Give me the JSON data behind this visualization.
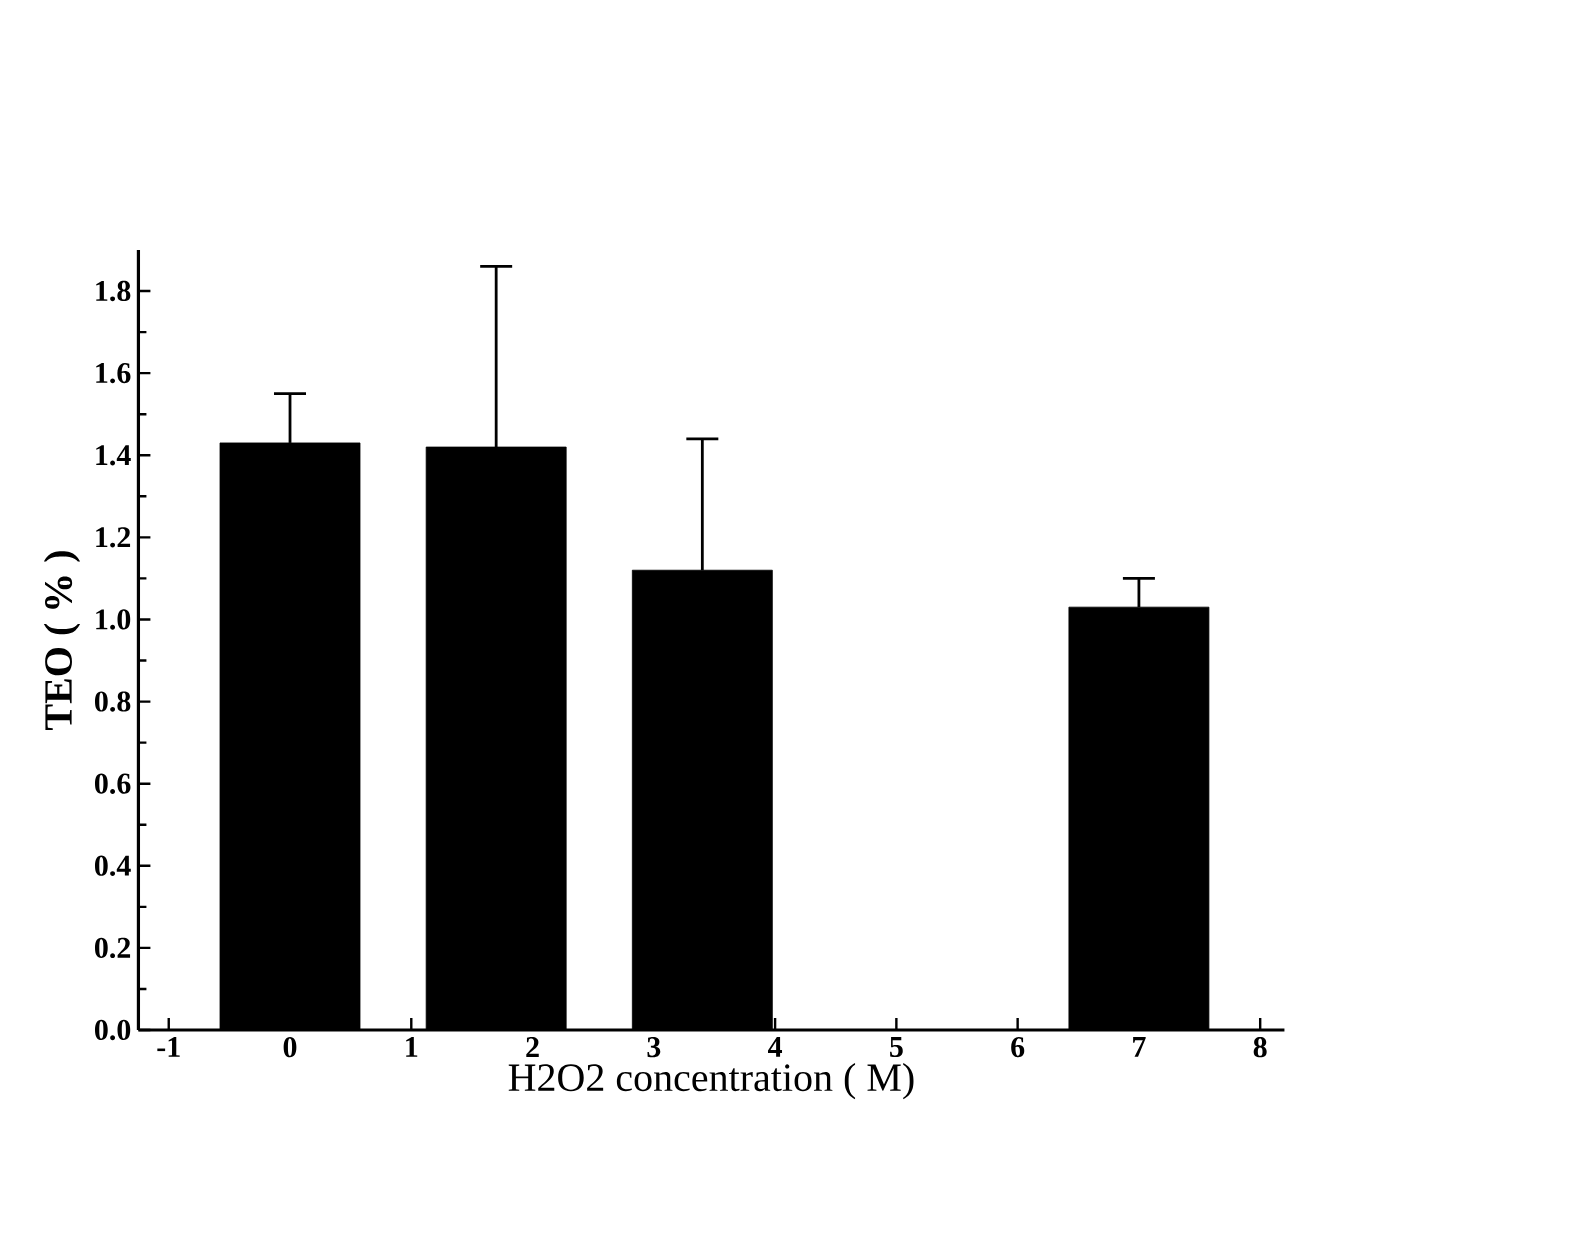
{
  "chart_data": {
    "type": "bar",
    "xlabel": "H2O2 concentration ( M)",
    "ylabel": "TEO ( % )",
    "x": [
      0,
      1.7,
      3.4,
      7
    ],
    "values": [
      1.43,
      1.42,
      1.12,
      1.03
    ],
    "errors": [
      0.12,
      0.44,
      0.32,
      0.07
    ],
    "color": "#000000",
    "xlim": [
      -1.25,
      8.2
    ],
    "ylim": [
      0,
      1.9
    ],
    "xticks": [
      -1,
      0,
      1,
      2,
      3,
      4,
      5,
      6,
      7,
      8
    ],
    "yticks": [
      {
        "value": 0,
        "label": "0.0"
      },
      0.2,
      0.4,
      0.6,
      0.8,
      {
        "value": 1,
        "label": "1.0"
      },
      1.2,
      1.4,
      1.6,
      1.8
    ],
    "grid": false
  }
}
